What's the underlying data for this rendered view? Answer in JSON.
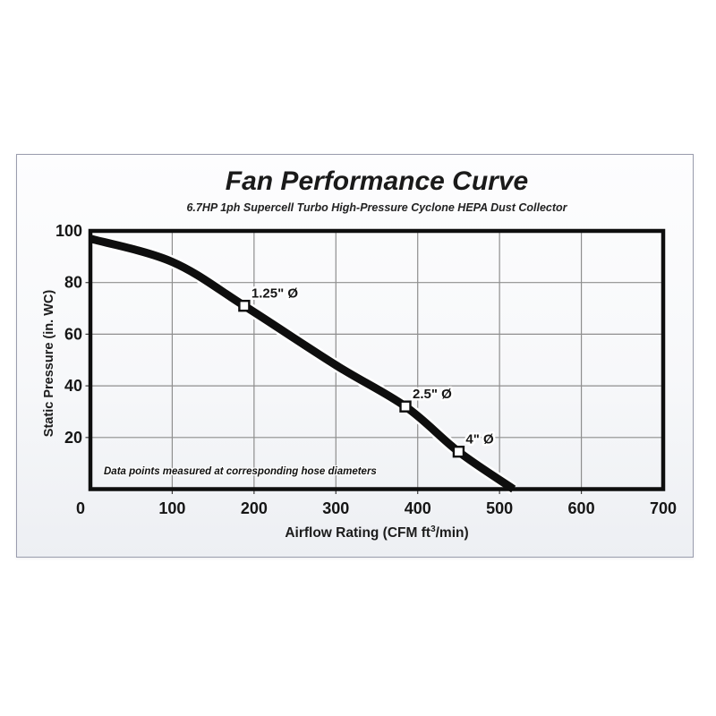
{
  "chart_data": {
    "type": "line",
    "title": "Fan Performance Curve",
    "subtitle": "6.7HP 1ph Supercell Turbo High-Pressure Cyclone HEPA Dust Collector",
    "xlabel": "Airflow Rating (CFM ft³/min)",
    "xlabel_parts": {
      "pre": "Airflow Rating (CFM ft",
      "sup": "3",
      "post": "/min)"
    },
    "ylabel": "Static Pressure (in. WC)",
    "footnote": "Data points measured at corresponding hose diameters",
    "xlim": [
      0,
      700
    ],
    "ylim": [
      0,
      100
    ],
    "x_ticks": [
      0,
      100,
      200,
      300,
      400,
      500,
      600,
      700
    ],
    "y_ticks": [
      20,
      40,
      60,
      80,
      100
    ],
    "grid": true,
    "legend": "none",
    "curve_points": [
      [
        0,
        97
      ],
      [
        100,
        88
      ],
      [
        188,
        71
      ],
      [
        300,
        48
      ],
      [
        385,
        32
      ],
      [
        450,
        14.5
      ],
      [
        517,
        0
      ]
    ],
    "markers": [
      {
        "x": 188,
        "y": 71,
        "label": "1.25\" Ø"
      },
      {
        "x": 385,
        "y": 32,
        "label": "2.5\" Ø"
      },
      {
        "x": 450,
        "y": 14.5,
        "label": "4\" Ø"
      }
    ],
    "colors": {
      "curve": "#0e0e0e",
      "curve_halo": "#ffffff",
      "grid": "#8e8e8e",
      "axis": "#0e0e0e",
      "text": "#161616",
      "panel_border": "#9a9dae"
    }
  }
}
